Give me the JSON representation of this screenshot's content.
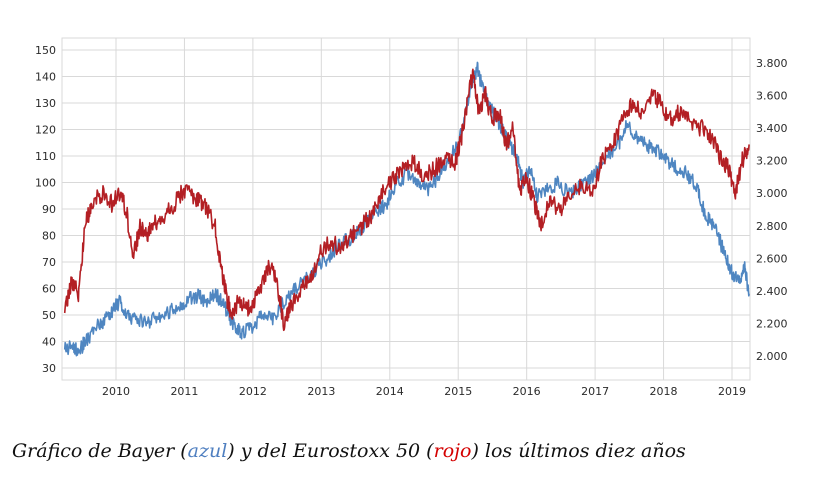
{
  "chart_data": {
    "type": "line",
    "title": "",
    "x_axis": {
      "ticks": [
        "2010",
        "2011",
        "2012",
        "2013",
        "2014",
        "2015",
        "2016",
        "2017",
        "2018",
        "2019"
      ],
      "range": [
        2009.25,
        2019.3
      ]
    },
    "y_left": {
      "ticks": [
        "150",
        "140",
        "130",
        "120",
        "110",
        "100",
        "90",
        "80",
        "70",
        "60",
        "50",
        "40",
        "30"
      ],
      "range": [
        25,
        155
      ]
    },
    "y_right": {
      "ticks": [
        "3.800",
        "3.600",
        "3.400",
        "3.200",
        "3.000",
        "2.800",
        "2.600",
        "2.400",
        "2.200",
        "2.000"
      ],
      "range": [
        1900,
        3900
      ]
    },
    "grid": true,
    "series": [
      {
        "name": "Bayer",
        "axis": "left",
        "color": "#4f86c1",
        "x": [
          2009.25,
          2009.35,
          2009.45,
          2009.55,
          2009.7,
          2009.85,
          2009.95,
          2010.05,
          2010.15,
          2010.3,
          2010.45,
          2010.6,
          2010.75,
          2010.9,
          2011.05,
          2011.2,
          2011.35,
          2011.45,
          2011.55,
          2011.65,
          2011.75,
          2011.85,
          2012.0,
          2012.15,
          2012.3,
          2012.45,
          2012.6,
          2012.75,
          2012.9,
          2013.05,
          2013.2,
          2013.35,
          2013.5,
          2013.65,
          2013.8,
          2013.95,
          2014.1,
          2014.25,
          2014.4,
          2014.55,
          2014.7,
          2014.85,
          2015.0,
          2015.1,
          2015.2,
          2015.28,
          2015.35,
          2015.45,
          2015.55,
          2015.65,
          2015.75,
          2015.85,
          2015.95,
          2016.05,
          2016.15,
          2016.3,
          2016.45,
          2016.6,
          2016.75,
          2016.9,
          2017.05,
          2017.2,
          2017.35,
          2017.45,
          2017.6,
          2017.75,
          2017.9,
          2018.05,
          2018.2,
          2018.35,
          2018.5,
          2018.6,
          2018.7,
          2018.8,
          2018.9,
          2019.0,
          2019.1,
          2019.18,
          2019.25
        ],
        "values": [
          37,
          38,
          36,
          40,
          45,
          48,
          52,
          55,
          50,
          48,
          47,
          49,
          51,
          53,
          56,
          57,
          55,
          58,
          55,
          50,
          45,
          43,
          46,
          50,
          48,
          55,
          60,
          63,
          67,
          70,
          75,
          78,
          80,
          85,
          88,
          92,
          100,
          103,
          101,
          97,
          102,
          108,
          115,
          125,
          138,
          143,
          136,
          130,
          125,
          120,
          115,
          110,
          100,
          105,
          95,
          97,
          100,
          96,
          98,
          100,
          105,
          110,
          115,
          122,
          118,
          114,
          112,
          108,
          105,
          103,
          98,
          88,
          85,
          80,
          72,
          66,
          62,
          68,
          58
        ],
        "label": "azul"
      },
      {
        "name": "Eurostoxx 50",
        "axis": "right",
        "color": "#b31f24",
        "x": [
          2009.25,
          2009.35,
          2009.45,
          2009.55,
          2009.65,
          2009.8,
          2009.95,
          2010.05,
          2010.15,
          2010.25,
          2010.35,
          2010.45,
          2010.55,
          2010.65,
          2010.8,
          2010.95,
          2011.1,
          2011.2,
          2011.3,
          2011.45,
          2011.55,
          2011.62,
          2011.7,
          2011.8,
          2011.9,
          2012.0,
          2012.1,
          2012.25,
          2012.35,
          2012.45,
          2012.55,
          2012.7,
          2012.85,
          2013.0,
          2013.15,
          2013.3,
          2013.45,
          2013.6,
          2013.75,
          2013.9,
          2014.05,
          2014.2,
          2014.35,
          2014.5,
          2014.65,
          2014.8,
          2014.95,
          2015.05,
          2015.15,
          2015.22,
          2015.3,
          2015.4,
          2015.5,
          2015.6,
          2015.7,
          2015.8,
          2015.9,
          2016.0,
          2016.1,
          2016.2,
          2016.35,
          2016.5,
          2016.65,
          2016.8,
          2016.95,
          2017.1,
          2017.25,
          2017.4,
          2017.55,
          2017.7,
          2017.85,
          2017.95,
          2018.1,
          2018.25,
          2018.4,
          2018.55,
          2018.7,
          2018.85,
          2018.95,
          2019.05,
          2019.15,
          2019.25
        ],
        "values": [
          2260,
          2450,
          2390,
          2800,
          2950,
          3000,
          2930,
          3000,
          2900,
          2600,
          2800,
          2750,
          2800,
          2850,
          2900,
          3000,
          3000,
          2950,
          2920,
          2800,
          2500,
          2350,
          2250,
          2350,
          2300,
          2300,
          2420,
          2550,
          2460,
          2200,
          2300,
          2400,
          2500,
          2650,
          2700,
          2650,
          2740,
          2800,
          2880,
          3000,
          3080,
          3150,
          3200,
          3100,
          3150,
          3200,
          3180,
          3350,
          3600,
          3750,
          3500,
          3600,
          3450,
          3500,
          3300,
          3400,
          3000,
          3100,
          2950,
          2800,
          2950,
          2900,
          3000,
          3050,
          3000,
          3200,
          3300,
          3450,
          3550,
          3500,
          3600,
          3550,
          3450,
          3500,
          3450,
          3400,
          3350,
          3200,
          3150,
          3000,
          3200,
          3300
        ]
      }
    ]
  },
  "caption": {
    "prefix": "Gráfico de Bayer (",
    "blue_word": "azul",
    "middle": ") y del Eurostoxx 50 (",
    "red_word": "rojo",
    "suffix": ") los últimos diez años"
  }
}
